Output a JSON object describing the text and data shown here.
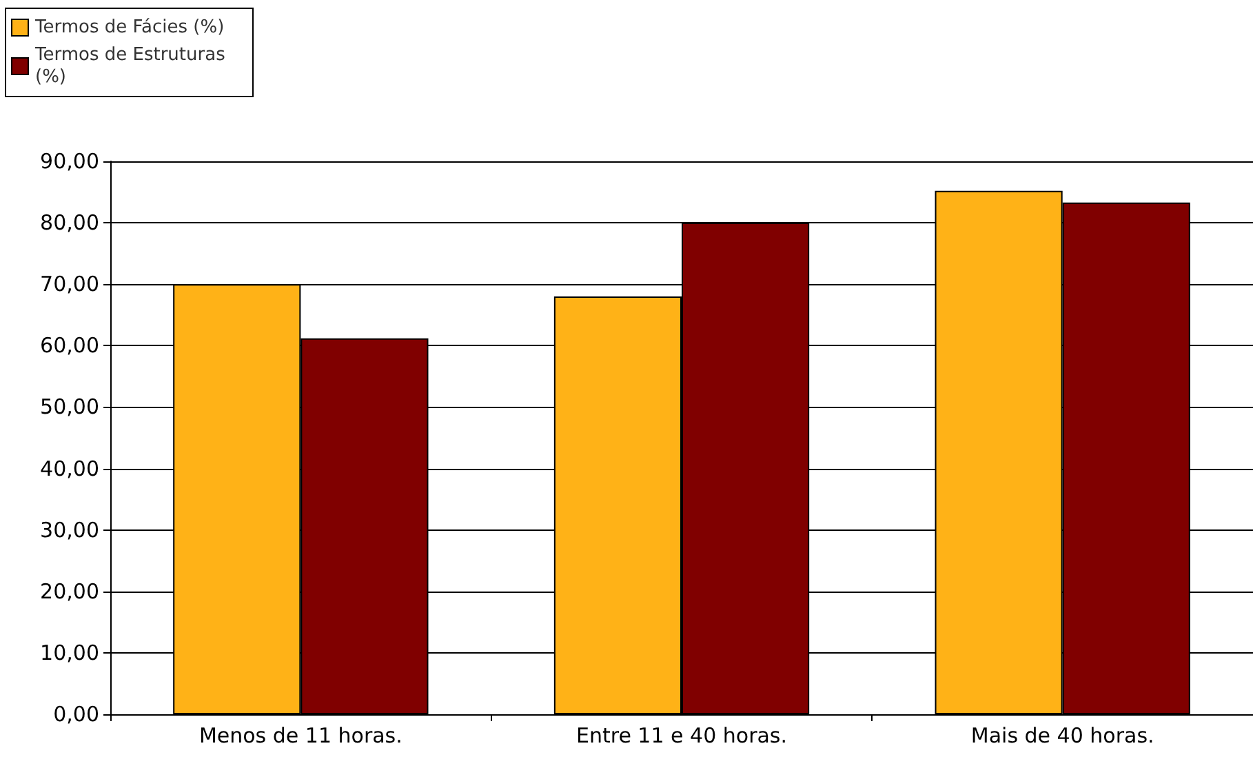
{
  "chart_data": {
    "type": "bar",
    "categories": [
      "Menos de 11 horas.",
      "Entre 11 e 40 horas.",
      "Mais de 40 horas."
    ],
    "series": [
      {
        "name": "Termos de Fácies (%)",
        "color": "#ffb217",
        "values": [
          70,
          68,
          85.2
        ]
      },
      {
        "name": "Termos de Estruturas (%)",
        "color": "#800000",
        "values": [
          61.2,
          80,
          83.3
        ]
      }
    ],
    "ylim": [
      0,
      90
    ],
    "yticks": [
      {
        "value": 0,
        "label": "0,00"
      },
      {
        "value": 10,
        "label": "10,00"
      },
      {
        "value": 20,
        "label": "20,00"
      },
      {
        "value": 30,
        "label": "30,00"
      },
      {
        "value": 40,
        "label": "40,00"
      },
      {
        "value": 50,
        "label": "50,00"
      },
      {
        "value": 60,
        "label": "60,00"
      },
      {
        "value": 70,
        "label": "70,00"
      },
      {
        "value": 80,
        "label": "80,00"
      },
      {
        "value": 90,
        "label": "90,00"
      }
    ],
    "grid": "y",
    "legend": "top left"
  }
}
